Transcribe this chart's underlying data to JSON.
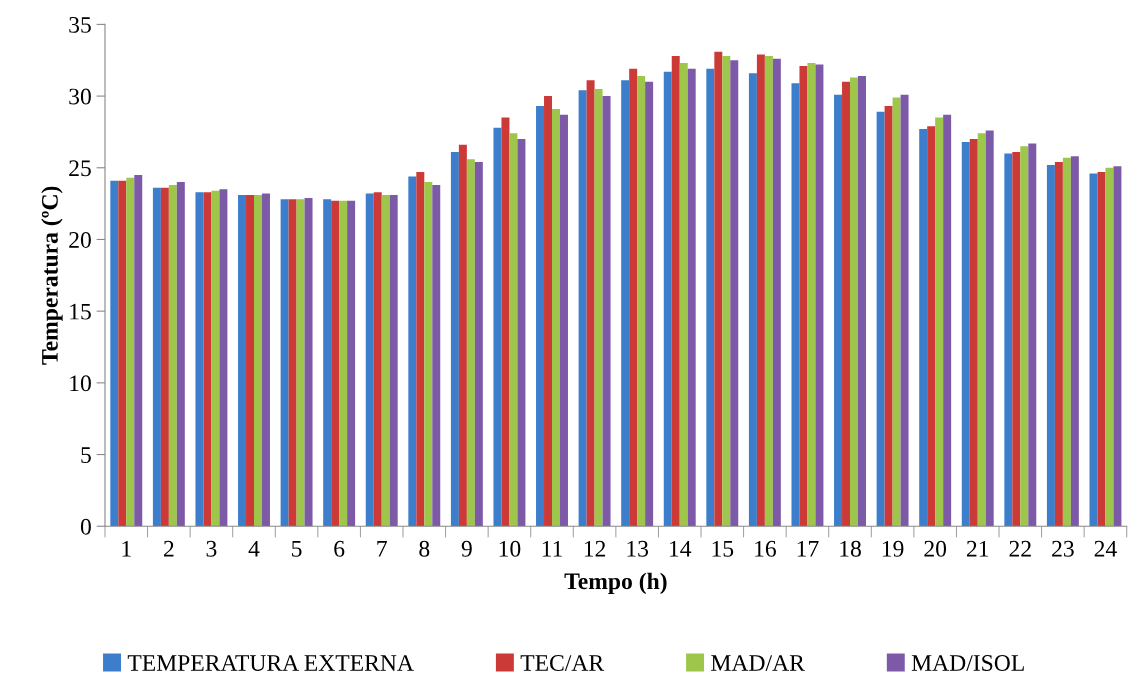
{
  "chart_data": {
    "type": "bar",
    "xlabel": "Tempo (h)",
    "ylabel": "Temperatura (ºC)",
    "categories": [
      "1",
      "2",
      "3",
      "4",
      "5",
      "6",
      "7",
      "8",
      "9",
      "10",
      "11",
      "12",
      "13",
      "14",
      "15",
      "16",
      "17",
      "18",
      "19",
      "20",
      "21",
      "22",
      "23",
      "24"
    ],
    "series": [
      {
        "name": "TEMPERATURA EXTERNA",
        "color": "#3c7dcc",
        "values": [
          24.1,
          23.6,
          23.3,
          23.1,
          22.8,
          22.8,
          23.2,
          24.4,
          26.1,
          27.8,
          29.3,
          30.4,
          31.1,
          31.7,
          31.9,
          31.6,
          30.9,
          30.1,
          28.9,
          27.7,
          26.8,
          26.0,
          25.2,
          24.6
        ]
      },
      {
        "name": "TEC/AR",
        "color": "#cc3a38",
        "values": [
          24.1,
          23.6,
          23.3,
          23.1,
          22.8,
          22.7,
          23.3,
          24.7,
          26.6,
          28.5,
          30.0,
          31.1,
          31.9,
          32.8,
          33.1,
          32.9,
          32.1,
          31.0,
          29.3,
          27.9,
          27.0,
          26.1,
          25.4,
          24.7
        ]
      },
      {
        "name": "MAD/AR",
        "color": "#9dc64a",
        "values": [
          24.3,
          23.8,
          23.4,
          23.1,
          22.8,
          22.7,
          23.1,
          24.0,
          25.6,
          27.4,
          29.1,
          30.5,
          31.4,
          32.3,
          32.8,
          32.8,
          32.3,
          31.3,
          29.9,
          28.5,
          27.4,
          26.5,
          25.7,
          25.0
        ]
      },
      {
        "name": "MAD/ISOL",
        "color": "#7d5aa8",
        "values": [
          24.5,
          24.0,
          23.5,
          23.2,
          22.9,
          22.7,
          23.1,
          23.8,
          25.4,
          27.0,
          28.7,
          30.0,
          31.0,
          31.9,
          32.5,
          32.6,
          32.2,
          31.4,
          30.1,
          28.7,
          27.6,
          26.7,
          25.8,
          25.1
        ]
      }
    ],
    "ylim": [
      0,
      35
    ],
    "yticks": [
      0,
      5,
      10,
      15,
      20,
      25,
      30,
      35
    ],
    "grid": false,
    "legend": "bottom"
  }
}
